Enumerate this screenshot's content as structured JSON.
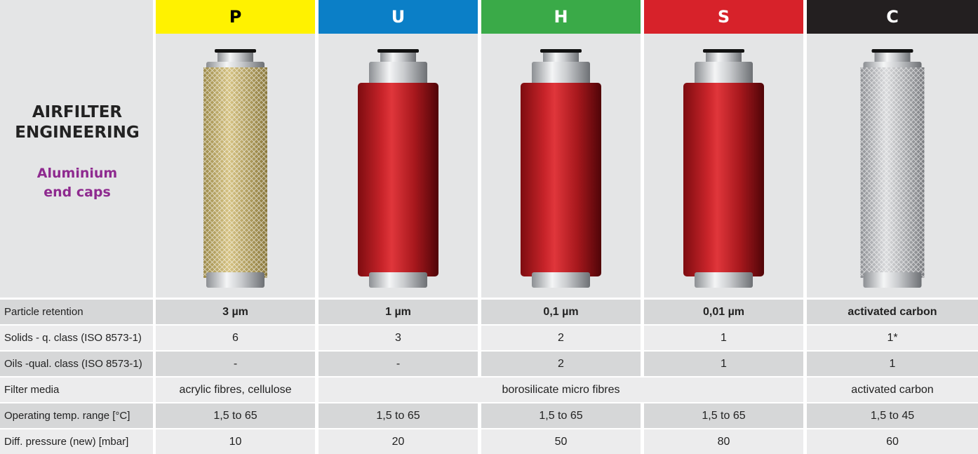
{
  "header": {
    "title": "AIRFILTER ENGINEERING",
    "subtitle": "Aluminium end caps"
  },
  "columns": [
    "P",
    "U",
    "H",
    "S",
    "C"
  ],
  "rows": [
    {
      "label": "Particle retention",
      "cells": [
        "3 µm",
        "1 µm",
        "0,1 µm",
        "0,01 µm",
        "activated carbon"
      ]
    },
    {
      "label": "Solids - q. class (ISO 8573-1)",
      "cells": [
        "6",
        "3",
        "2",
        "1",
        "1*"
      ]
    },
    {
      "label": "Oils -qual. class (ISO 8573-1)",
      "cells": [
        "-",
        "-",
        "2",
        "1",
        "1"
      ]
    },
    {
      "label": "Filter media",
      "cells": [
        "acrylic fibres, cellulose",
        "borosilicate micro fibres",
        "activated carbon"
      ]
    },
    {
      "label": "Operating temp. range [°C]",
      "cells": [
        "1,5 to 65",
        "1,5 to 65",
        "1,5 to 65",
        "1,5 to 65",
        "1,5 to 45"
      ]
    },
    {
      "label": "Diff. pressure (new) [mbar]",
      "cells": [
        "10",
        "20",
        "50",
        "80",
        "60"
      ]
    }
  ]
}
